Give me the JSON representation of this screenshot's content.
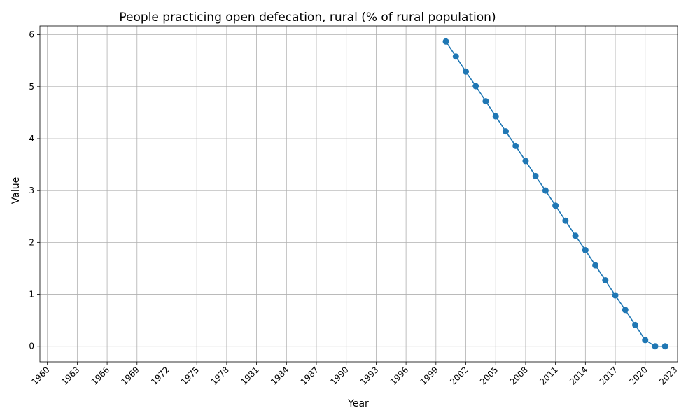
{
  "chart_data": {
    "type": "line",
    "title": "People practicing open defecation, rural (% of rural population)",
    "xlabel": "Year",
    "ylabel": "Value",
    "xlim": [
      1959.25,
      2023.25
    ],
    "ylim": [
      -0.3,
      6.17
    ],
    "grid": true,
    "x_ticks": [
      1960,
      1963,
      1966,
      1969,
      1972,
      1975,
      1978,
      1981,
      1984,
      1987,
      1990,
      1993,
      1996,
      1999,
      2002,
      2005,
      2008,
      2011,
      2014,
      2017,
      2020,
      2023
    ],
    "y_ticks": [
      0,
      1,
      2,
      3,
      4,
      5,
      6
    ],
    "line_color": "#1f77b4",
    "series": [
      {
        "x": [
          2000,
          2001,
          2002,
          2003,
          2004,
          2005,
          2006,
          2007,
          2008,
          2009,
          2010,
          2011,
          2012,
          2013,
          2014,
          2015,
          2016,
          2017,
          2018,
          2019,
          2020,
          2021,
          2022
        ],
        "values": [
          5.87,
          5.58,
          5.29,
          5.01,
          4.72,
          4.43,
          4.14,
          3.86,
          3.57,
          3.28,
          3.0,
          2.71,
          2.42,
          2.13,
          1.85,
          1.56,
          1.27,
          0.98,
          0.7,
          0.41,
          0.12,
          0.0,
          0.0
        ]
      }
    ]
  }
}
